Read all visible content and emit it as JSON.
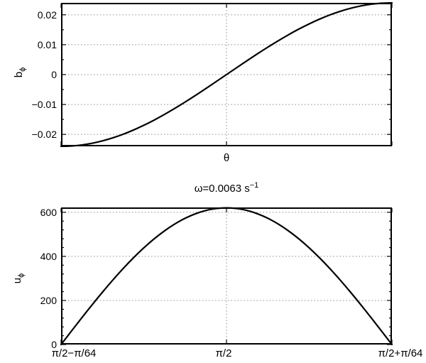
{
  "figure": {
    "background": "#ffffff",
    "frame_color": "#000000",
    "curve_color": "#000000",
    "grid_color": "#8c8c8c",
    "tick_color": "#000000"
  },
  "chart_data": [
    {
      "id": "top",
      "type": "line",
      "title": "",
      "ylabel_base": "b",
      "ylabel_sub": "ϕ",
      "xlabel": "θ",
      "xlim": [
        -1,
        1
      ],
      "ylim": [
        -0.024,
        0.024
      ],
      "grid": true,
      "legend": "none",
      "yticks": [
        {
          "v": 0.02,
          "label": "0.02"
        },
        {
          "v": 0.01,
          "label": "0.01"
        },
        {
          "v": 0,
          "label": "0"
        },
        {
          "v": -0.01,
          "label": "−0.01"
        },
        {
          "v": -0.02,
          "label": "−0.02"
        }
      ],
      "ytick_minor_step": 0.005,
      "xticks": [
        {
          "v": -1,
          "label": ""
        },
        {
          "v": 0,
          "label": ""
        },
        {
          "v": 1,
          "label": ""
        }
      ],
      "x_note_units": "x normalized: (θ−π/2)/(π/64)",
      "x": [
        -1,
        -0.9375,
        -0.875,
        -0.8125,
        -0.75,
        -0.6875,
        -0.625,
        -0.5625,
        -0.5,
        -0.4375,
        -0.375,
        -0.3125,
        -0.25,
        -0.1875,
        -0.125,
        -0.0625,
        0,
        0.0625,
        0.125,
        0.1875,
        0.25,
        0.3125,
        0.375,
        0.4375,
        0.5,
        0.5625,
        0.625,
        0.6875,
        0.75,
        0.8125,
        0.875,
        0.9375,
        1
      ],
      "y": [
        -0.024,
        -0.02388,
        -0.02354,
        -0.02297,
        -0.02217,
        -0.02117,
        -0.01996,
        -0.01855,
        -0.01697,
        -0.01523,
        -0.01333,
        -0.01131,
        -0.00918,
        -0.00697,
        -0.00468,
        -0.00235,
        0,
        0.00235,
        0.00468,
        0.00697,
        0.00918,
        0.01131,
        0.01333,
        0.01523,
        0.01697,
        0.01855,
        0.01996,
        0.02117,
        0.02217,
        0.02297,
        0.02354,
        0.02388,
        0.024
      ]
    },
    {
      "id": "bottom",
      "type": "line",
      "title_text": "ω=0.0063 s",
      "title_sup": "−1",
      "ylabel_base": "u",
      "ylabel_sub": "ϕ",
      "xlabel": "",
      "xlim": [
        -1,
        1
      ],
      "ylim": [
        0,
        622
      ],
      "grid": true,
      "legend": "none",
      "yticks": [
        {
          "v": 600,
          "label": "600"
        },
        {
          "v": 400,
          "label": "400"
        },
        {
          "v": 200,
          "label": "200"
        },
        {
          "v": 0,
          "label": "0"
        }
      ],
      "ytick_minor_step": 40,
      "xticks": [
        {
          "v": -1,
          "label": "π/2−π/64"
        },
        {
          "v": 0,
          "label": "π/2"
        },
        {
          "v": 1,
          "label": "π/2+π/64"
        }
      ],
      "x": [
        -1,
        -0.9375,
        -0.875,
        -0.8125,
        -0.75,
        -0.6875,
        -0.625,
        -0.5625,
        -0.5,
        -0.4375,
        -0.375,
        -0.3125,
        -0.25,
        -0.1875,
        -0.125,
        -0.0625,
        0,
        0.0625,
        0.125,
        0.1875,
        0.25,
        0.3125,
        0.375,
        0.4375,
        0.5,
        0.5625,
        0.625,
        0.6875,
        0.75,
        0.8125,
        0.875,
        0.9375,
        1
      ],
      "y": [
        0,
        60.8,
        121,
        180,
        237.3,
        292.3,
        344.5,
        393.3,
        438.4,
        479.3,
        515.5,
        546.8,
        572.8,
        593.3,
        608.1,
        617,
        620,
        617,
        608.1,
        593.3,
        572.8,
        546.8,
        515.5,
        479.3,
        438.4,
        393.3,
        344.5,
        292.3,
        237.3,
        180,
        121,
        60.8,
        0
      ]
    }
  ]
}
